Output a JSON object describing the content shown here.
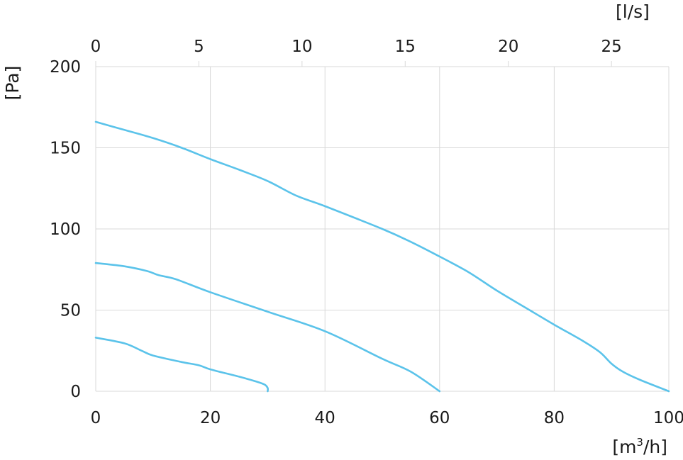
{
  "chart_data": {
    "type": "line",
    "title": "",
    "xlabel": "[m³/h]",
    "xlabel_base": "[m",
    "xlabel_sup": "3",
    "xlabel_tail": "/h]",
    "ylabel": "[Pa]",
    "x2label": "[l/s]",
    "xlim": [
      0,
      100
    ],
    "ylim": [
      0,
      200
    ],
    "x2lim": [
      0,
      27.78
    ],
    "x_ticks": [
      "0",
      "20",
      "40",
      "60",
      "80",
      "100"
    ],
    "y_ticks": [
      "0",
      "50",
      "100",
      "150",
      "200"
    ],
    "x2_ticks": [
      "0",
      "5",
      "10",
      "15",
      "20",
      "25"
    ],
    "grid": true,
    "colors": {
      "curve": "#5bc3ea",
      "grid": "#d9d9d9",
      "text": "#1a1a1a"
    },
    "series": [
      {
        "x": [
          0,
          5,
          8,
          10,
          15,
          18,
          20,
          25,
          28,
          29.5,
          30,
          30
        ],
        "y": [
          33,
          29.5,
          25,
          22,
          18,
          16,
          13.5,
          9,
          6,
          4,
          2,
          0
        ]
      },
      {
        "x": [
          0,
          5,
          9,
          11,
          14,
          20,
          30,
          40,
          50,
          55,
          60
        ],
        "y": [
          79,
          77,
          74,
          71.5,
          69,
          61,
          49,
          37,
          20,
          12,
          0
        ]
      },
      {
        "x": [
          0,
          5,
          10,
          15,
          20,
          25,
          30,
          35,
          40,
          50,
          55,
          60,
          65,
          70,
          75,
          80,
          85,
          88,
          90,
          92,
          95,
          100
        ],
        "y": [
          166,
          161,
          156,
          150,
          143,
          136.5,
          129.5,
          120.5,
          114,
          100,
          92,
          83,
          73.5,
          62,
          51.5,
          41,
          31,
          24,
          17,
          12,
          7,
          0
        ]
      }
    ]
  }
}
